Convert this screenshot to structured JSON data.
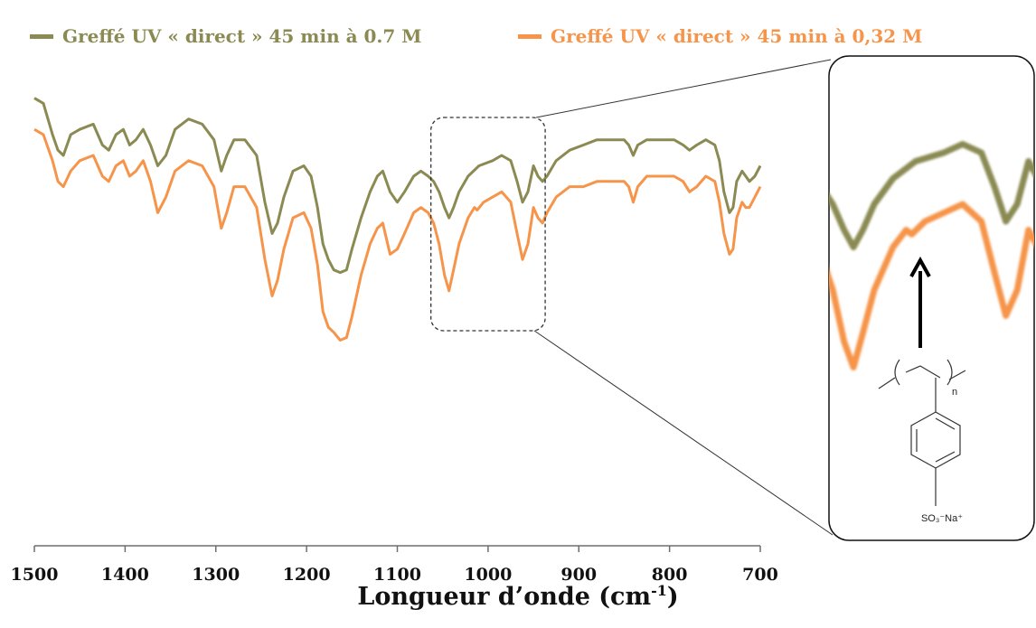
{
  "colors": {
    "series_1": "#8a8a52",
    "series_2": "#f6944a"
  },
  "legend": {
    "series_1": "Greffé UV « direct » 45 min à 0.7 M",
    "series_2": "Greffé UV « direct » 45 min à 0,32 M"
  },
  "axis": {
    "xlabel_main": "Longueur d’onde (cm",
    "xlabel_sup": "-1",
    "xlabel_close": ")"
  },
  "inset": {
    "formula_subscript": "n",
    "formula_group": "SO₃⁻Na⁺"
  },
  "chart_data": {
    "type": "line",
    "title": "",
    "xlabel": "Longueur d’onde (cm-1)",
    "ylabel": "",
    "xlim": [
      1500,
      700
    ],
    "x_reversed": true,
    "ylim": [
      0,
      100
    ],
    "x_ticks": [
      1500,
      1400,
      1300,
      1200,
      1100,
      1000,
      900,
      800,
      700
    ],
    "y_axis_visible": false,
    "grid": false,
    "legend_position": "top",
    "zoom_region": [
      1055,
      945
    ],
    "series": [
      {
        "name": "Greffé UV « direct » 45 min à 0.7 M",
        "color": "#8a8a52",
        "points": [
          [
            1500,
            86
          ],
          [
            1490,
            85
          ],
          [
            1480,
            79
          ],
          [
            1474,
            76
          ],
          [
            1468,
            75
          ],
          [
            1460,
            79
          ],
          [
            1450,
            80
          ],
          [
            1435,
            81
          ],
          [
            1425,
            77
          ],
          [
            1418,
            76
          ],
          [
            1410,
            79
          ],
          [
            1402,
            80
          ],
          [
            1395,
            77
          ],
          [
            1388,
            78
          ],
          [
            1380,
            80
          ],
          [
            1372,
            77
          ],
          [
            1364,
            73
          ],
          [
            1355,
            75
          ],
          [
            1345,
            80
          ],
          [
            1330,
            82
          ],
          [
            1315,
            81
          ],
          [
            1302,
            78
          ],
          [
            1294,
            72
          ],
          [
            1288,
            75
          ],
          [
            1280,
            78
          ],
          [
            1268,
            78
          ],
          [
            1255,
            75
          ],
          [
            1246,
            66
          ],
          [
            1238,
            60
          ],
          [
            1232,
            62
          ],
          [
            1225,
            67
          ],
          [
            1215,
            72
          ],
          [
            1203,
            73
          ],
          [
            1195,
            71
          ],
          [
            1188,
            65
          ],
          [
            1182,
            58
          ],
          [
            1176,
            55
          ],
          [
            1170,
            53
          ],
          [
            1163,
            52.5
          ],
          [
            1156,
            53
          ],
          [
            1150,
            57
          ],
          [
            1140,
            63
          ],
          [
            1130,
            68
          ],
          [
            1122,
            71
          ],
          [
            1116,
            72
          ],
          [
            1108,
            68
          ],
          [
            1100,
            66
          ],
          [
            1092,
            68
          ],
          [
            1082,
            71
          ],
          [
            1074,
            72
          ],
          [
            1066,
            71
          ],
          [
            1060,
            70
          ],
          [
            1054,
            68
          ],
          [
            1048,
            65
          ],
          [
            1043,
            63
          ],
          [
            1038,
            65
          ],
          [
            1032,
            68
          ],
          [
            1022,
            71
          ],
          [
            1010,
            73
          ],
          [
            995,
            74
          ],
          [
            985,
            75
          ],
          [
            975,
            74
          ],
          [
            968,
            70
          ],
          [
            962,
            66
          ],
          [
            956,
            68
          ],
          [
            950,
            73
          ],
          [
            945,
            71
          ],
          [
            940,
            70
          ],
          [
            935,
            71
          ],
          [
            925,
            74
          ],
          [
            910,
            76
          ],
          [
            895,
            77
          ],
          [
            880,
            78
          ],
          [
            865,
            78
          ],
          [
            850,
            78
          ],
          [
            845,
            77
          ],
          [
            840,
            75
          ],
          [
            835,
            77
          ],
          [
            825,
            78
          ],
          [
            810,
            78
          ],
          [
            795,
            78
          ],
          [
            785,
            77
          ],
          [
            778,
            76
          ],
          [
            770,
            77
          ],
          [
            760,
            78
          ],
          [
            750,
            77
          ],
          [
            745,
            74
          ],
          [
            740,
            68
          ],
          [
            734,
            64
          ],
          [
            730,
            65
          ],
          [
            726,
            70
          ],
          [
            720,
            72
          ],
          [
            716,
            71
          ],
          [
            712,
            70
          ],
          [
            706,
            71
          ],
          [
            700,
            73
          ]
        ]
      },
      {
        "name": "Greffé UV « direct » 45 min à 0,32 M",
        "color": "#f6944a",
        "points": [
          [
            1500,
            80
          ],
          [
            1490,
            79
          ],
          [
            1480,
            74
          ],
          [
            1474,
            70
          ],
          [
            1468,
            69
          ],
          [
            1460,
            72
          ],
          [
            1450,
            74
          ],
          [
            1435,
            75
          ],
          [
            1425,
            71
          ],
          [
            1418,
            70
          ],
          [
            1410,
            73
          ],
          [
            1402,
            74
          ],
          [
            1395,
            71
          ],
          [
            1388,
            72
          ],
          [
            1380,
            74
          ],
          [
            1372,
            70
          ],
          [
            1364,
            64
          ],
          [
            1355,
            67
          ],
          [
            1345,
            72
          ],
          [
            1330,
            74
          ],
          [
            1315,
            73
          ],
          [
            1302,
            69
          ],
          [
            1294,
            61
          ],
          [
            1288,
            64
          ],
          [
            1280,
            69
          ],
          [
            1268,
            69
          ],
          [
            1255,
            65
          ],
          [
            1246,
            55
          ],
          [
            1238,
            48
          ],
          [
            1232,
            51
          ],
          [
            1225,
            57
          ],
          [
            1215,
            63
          ],
          [
            1203,
            64
          ],
          [
            1195,
            61
          ],
          [
            1188,
            54
          ],
          [
            1182,
            45
          ],
          [
            1176,
            42
          ],
          [
            1170,
            41
          ],
          [
            1163,
            39.5
          ],
          [
            1156,
            40
          ],
          [
            1150,
            44
          ],
          [
            1140,
            52
          ],
          [
            1130,
            58
          ],
          [
            1122,
            61
          ],
          [
            1116,
            62
          ],
          [
            1108,
            56
          ],
          [
            1100,
            57
          ],
          [
            1092,
            60
          ],
          [
            1082,
            64
          ],
          [
            1074,
            65
          ],
          [
            1066,
            64
          ],
          [
            1060,
            62
          ],
          [
            1054,
            58
          ],
          [
            1048,
            52
          ],
          [
            1043,
            49
          ],
          [
            1038,
            53
          ],
          [
            1032,
            58
          ],
          [
            1022,
            63
          ],
          [
            1015,
            65
          ],
          [
            1012,
            64.5
          ],
          [
            1005,
            66
          ],
          [
            995,
            67
          ],
          [
            985,
            68
          ],
          [
            975,
            66
          ],
          [
            968,
            60
          ],
          [
            962,
            55
          ],
          [
            956,
            58
          ],
          [
            950,
            65
          ],
          [
            945,
            63
          ],
          [
            940,
            62
          ],
          [
            935,
            64
          ],
          [
            925,
            67
          ],
          [
            910,
            69
          ],
          [
            895,
            69
          ],
          [
            880,
            70
          ],
          [
            865,
            70
          ],
          [
            850,
            70
          ],
          [
            845,
            69
          ],
          [
            840,
            66
          ],
          [
            835,
            69
          ],
          [
            825,
            71
          ],
          [
            810,
            71
          ],
          [
            795,
            71
          ],
          [
            785,
            70
          ],
          [
            778,
            68
          ],
          [
            770,
            69
          ],
          [
            760,
            71
          ],
          [
            750,
            70
          ],
          [
            745,
            66
          ],
          [
            740,
            60
          ],
          [
            734,
            56
          ],
          [
            730,
            57
          ],
          [
            726,
            63
          ],
          [
            720,
            66
          ],
          [
            716,
            65
          ],
          [
            712,
            65
          ],
          [
            706,
            67
          ],
          [
            700,
            69
          ]
        ]
      }
    ]
  }
}
